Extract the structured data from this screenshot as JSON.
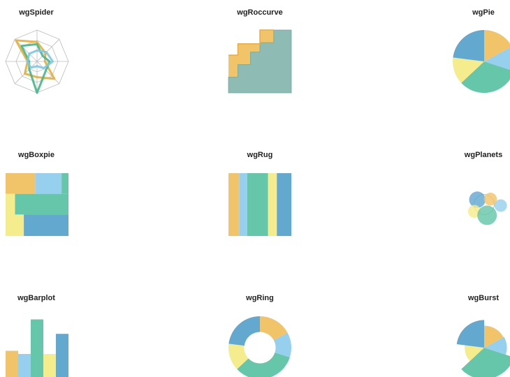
{
  "colors": {
    "yellow_orange": "#f2c46a",
    "light_blue": "#97d0ee",
    "teal": "#66c6aa",
    "pale_yellow": "#f5ec8e",
    "blue": "#63a8cf",
    "spider_yellow": "#e8ad38",
    "spider_green": "#45b68a",
    "spider_blue": "#7ec8e6",
    "grid": "#bbbbbb",
    "roc_fill": "#8ebcb5",
    "roc_edge": "#e9ab3a"
  },
  "chart_data": [
    {
      "type": "radar",
      "title": "wgSpider",
      "axes_count": 8,
      "rmax": 1,
      "grid_levels": 3,
      "series": [
        {
          "color": "spider_yellow",
          "values": [
            0.62,
            0.38,
            0.25,
            0.78,
            0.5,
            0.55,
            0.3,
            0.95
          ]
        },
        {
          "color": "spider_green",
          "values": [
            0.55,
            0.25,
            0.4,
            0.4,
            1.0,
            0.35,
            0.25,
            0.7
          ]
        },
        {
          "color": "spider_blue",
          "values": [
            0.35,
            0.42,
            0.5,
            0.3,
            0.15,
            0.28,
            0.3,
            0.35
          ]
        }
      ]
    },
    {
      "type": "area",
      "title": "wgRoccurve",
      "xlim": [
        0,
        1
      ],
      "ylim": [
        0,
        1
      ],
      "curve_upper": [
        [
          0,
          0.6
        ],
        [
          0.15,
          0.6
        ],
        [
          0.15,
          0.78
        ],
        [
          0.5,
          0.78
        ],
        [
          0.5,
          1
        ],
        [
          0.72,
          1
        ]
      ],
      "curve_lower": [
        [
          0,
          0.25
        ],
        [
          0.15,
          0.25
        ],
        [
          0.15,
          0.45
        ],
        [
          0.35,
          0.45
        ],
        [
          0.35,
          0.65
        ],
        [
          0.5,
          0.65
        ],
        [
          0.5,
          0.8
        ],
        [
          0.72,
          0.8
        ],
        [
          0.72,
          1
        ],
        [
          1,
          1
        ]
      ]
    },
    {
      "type": "pie",
      "title": "wgPie",
      "values": [
        0.17,
        0.13,
        0.33,
        0.14,
        0.23
      ],
      "colors": [
        "yellow_orange",
        "light_blue",
        "teal",
        "pale_yellow",
        "blue"
      ]
    },
    {
      "type": "treemap",
      "title": "wgBoxpie",
      "cells": [
        {
          "x": 0,
          "y": 0,
          "w": 0.47,
          "h": 0.33,
          "color": "yellow_orange"
        },
        {
          "x": 0.47,
          "y": 0,
          "w": 0.42,
          "h": 0.33,
          "color": "light_blue"
        },
        {
          "x": 0.89,
          "y": 0,
          "w": 0.11,
          "h": 0.33,
          "color": "teal"
        },
        {
          "x": 0,
          "y": 0.33,
          "w": 0.15,
          "h": 0.67,
          "color": "pale_yellow"
        },
        {
          "x": 0.15,
          "y": 0.33,
          "w": 0.85,
          "h": 0.33,
          "color": "teal"
        },
        {
          "x": 0.15,
          "y": 0.66,
          "w": 0.14,
          "h": 0.34,
          "color": "pale_yellow"
        },
        {
          "x": 0.29,
          "y": 0.66,
          "w": 0.71,
          "h": 0.34,
          "color": "blue"
        }
      ]
    },
    {
      "type": "bar",
      "title": "wgRug",
      "widths": [
        0.17,
        0.13,
        0.33,
        0.14,
        0.23
      ],
      "colors": [
        "yellow_orange",
        "light_blue",
        "teal",
        "pale_yellow",
        "blue"
      ]
    },
    {
      "type": "bubble",
      "title": "wgPlanets",
      "circles": [
        {
          "x": -0.35,
          "y": -0.25,
          "r": 0.42,
          "color": "blue"
        },
        {
          "x": 0.32,
          "y": -0.28,
          "r": 0.33,
          "color": "yellow_orange"
        },
        {
          "x": 0.85,
          "y": 0.05,
          "r": 0.32,
          "color": "light_blue"
        },
        {
          "x": -0.5,
          "y": 0.35,
          "r": 0.33,
          "color": "pale_yellow"
        },
        {
          "x": 0.15,
          "y": 0.55,
          "r": 0.5,
          "color": "teal"
        }
      ]
    },
    {
      "type": "bar",
      "title": "wgBarplot",
      "values": [
        0.45,
        0.4,
        0.95,
        0.4,
        0.72
      ],
      "ylim": [
        0,
        1
      ],
      "colors": [
        "yellow_orange",
        "light_blue",
        "teal",
        "pale_yellow",
        "blue"
      ]
    },
    {
      "type": "pie",
      "title": "wgRing",
      "donut": true,
      "inner_radius": 0.5,
      "values": [
        0.17,
        0.13,
        0.33,
        0.14,
        0.23
      ],
      "colors": [
        "yellow_orange",
        "light_blue",
        "teal",
        "pale_yellow",
        "blue"
      ]
    },
    {
      "type": "pie",
      "title": "wgBurst",
      "values": [
        0.17,
        0.13,
        0.33,
        0.14,
        0.23
      ],
      "radii": [
        0.7,
        0.72,
        1.0,
        0.62,
        0.88
      ],
      "colors": [
        "yellow_orange",
        "light_blue",
        "teal",
        "pale_yellow",
        "blue"
      ]
    }
  ]
}
